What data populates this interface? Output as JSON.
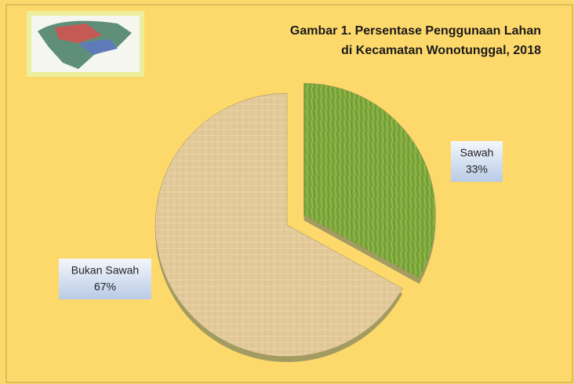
{
  "chart_data": {
    "type": "pie",
    "title": [
      "Gambar 1. Persentase Penggunaan Lahan",
      "di Kecamatan Wonotunggal, 2018"
    ],
    "categories": [
      "Sawah",
      "Bukan Sawah"
    ],
    "values": [
      33,
      67
    ],
    "value_labels": [
      "33%",
      "67%"
    ],
    "colors": [
      "#7ea83c",
      "#e3ca9b"
    ]
  }
}
